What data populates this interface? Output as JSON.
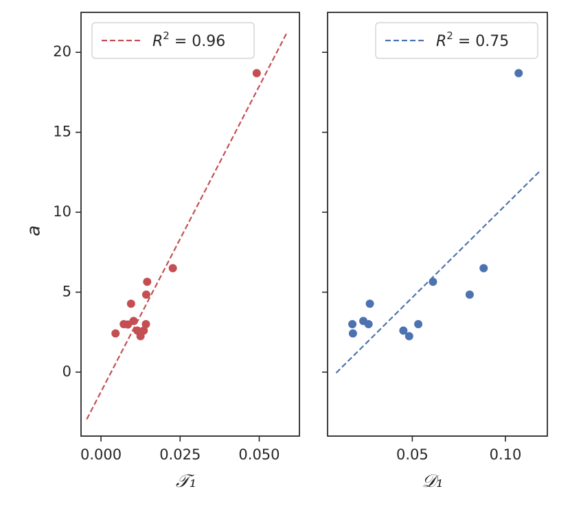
{
  "figure": {
    "ylabel": "a",
    "colors": {
      "red": "#c44e52",
      "blue": "#4c72b0",
      "axis": "#262626"
    }
  },
  "chart_data": [
    {
      "type": "scatter",
      "panel": "left",
      "xlabel": "𝒯₁",
      "ylabel": "a",
      "xlim": [
        -0.0063,
        0.0627
      ],
      "ylim": [
        -4.0,
        22.5
      ],
      "xticks": [
        0.0,
        0.025,
        0.05
      ],
      "xtick_labels": [
        "0.000",
        "0.025",
        "0.050"
      ],
      "yticks": [
        0,
        5,
        10,
        15,
        20
      ],
      "ytick_labels": [
        "0",
        "5",
        "10",
        "15",
        "20"
      ],
      "legend": {
        "label": "R² = 0.96",
        "label_prefix": "R",
        "label_sup": "2",
        "label_suffix": " = 0.96",
        "loc": "upper left"
      },
      "color": "#c44e52",
      "points": {
        "x": [
          0.0046,
          0.0072,
          0.0085,
          0.0095,
          0.0103,
          0.0115,
          0.0125,
          0.0135,
          0.0142,
          0.0143,
          0.0146,
          0.0227,
          0.0492
        ],
        "y": [
          2.42,
          3.0,
          2.98,
          4.28,
          3.2,
          2.6,
          2.25,
          2.6,
          3.0,
          4.85,
          5.65,
          6.5,
          18.7
        ]
      },
      "fit": {
        "x": [
          -0.0045,
          0.0588
        ],
        "y": [
          -2.95,
          21.25
        ]
      }
    },
    {
      "type": "scatter",
      "panel": "right",
      "xlabel": "𝒟₁",
      "ylabel": "",
      "xlim": [
        0.0045,
        0.1225
      ],
      "ylim": [
        -4.0,
        22.5
      ],
      "xticks": [
        0.05,
        0.1
      ],
      "xtick_labels": [
        "0.05",
        "0.10"
      ],
      "yticks": [
        0,
        5,
        10,
        15,
        20
      ],
      "ytick_labels": [],
      "legend": {
        "label": "R² = 0.75",
        "label_prefix": "R",
        "label_sup": "2",
        "label_suffix": " = 0.75",
        "loc": "upper right"
      },
      "color": "#4c72b0",
      "points": {
        "x": [
          0.0178,
          0.0181,
          0.0237,
          0.0265,
          0.0272,
          0.0452,
          0.0483,
          0.0532,
          0.0611,
          0.0808,
          0.0883,
          0.1071
        ],
        "y": [
          3.0,
          2.42,
          3.2,
          3.0,
          4.28,
          2.6,
          2.25,
          3.0,
          5.65,
          4.85,
          6.5,
          18.7
        ]
      },
      "fit": {
        "x": [
          0.0091,
          0.1183
        ],
        "y": [
          -0.05,
          12.55
        ]
      }
    }
  ]
}
